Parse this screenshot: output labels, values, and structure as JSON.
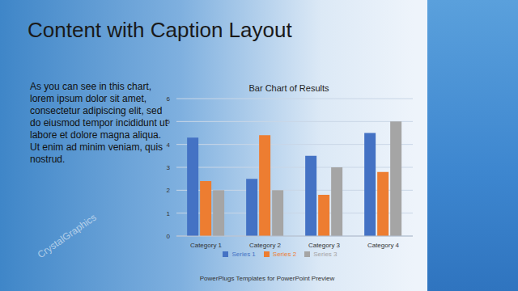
{
  "slide": {
    "title": "Content with Caption Layout",
    "caption": "As you can see in this chart, lorem ipsum dolor sit amet, consectetur adipiscing elit, sed do eiusmod tempor incididunt ut labore et dolore magna aliqua. Ut enim ad minim veniam, quis nostrud.",
    "footer": "PowerPlugs Templates for PowerPoint Preview",
    "watermark": "CrystalGraphics"
  },
  "chart_data": {
    "type": "bar",
    "title": "Bar Chart of Results",
    "categories": [
      "Category 1",
      "Category 2",
      "Category 3",
      "Category 4"
    ],
    "series": [
      {
        "name": "Series 1",
        "color": "#4472c4",
        "values": [
          4.3,
          2.5,
          3.5,
          4.5
        ]
      },
      {
        "name": "Series 2",
        "color": "#ed7d31",
        "values": [
          2.4,
          4.4,
          1.8,
          2.8
        ]
      },
      {
        "name": "Series 3",
        "color": "#a5a5a5",
        "values": [
          2.0,
          2.0,
          3.0,
          5.0
        ]
      }
    ],
    "ylim": [
      0,
      6
    ],
    "yticks": [
      0,
      1,
      2,
      3,
      4,
      5,
      6
    ],
    "grid": true,
    "legend": "bottom"
  }
}
